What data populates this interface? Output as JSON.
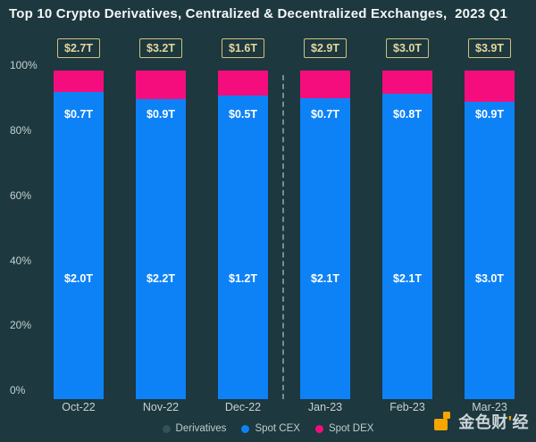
{
  "title": "Top 10 Crypto Derivatives, Centralized & Decentralized Exchanges,  2023 Q1",
  "colors": {
    "background": "#1d383e",
    "bar_blue": "#0d82f7",
    "bar_pink": "#f50d7d",
    "total_box_khaki": "#cfc182",
    "axis_text": "#c5d1d3",
    "title_text": "#f4f7f7",
    "watermark_orange": "#f7a600"
  },
  "watermark": {
    "text_left": "金色财",
    "accent": "'",
    "text_right": "经"
  },
  "chart_data": {
    "type": "bar",
    "stacked": true,
    "percentage_axis": true,
    "title": "Top 10 Crypto Derivatives, Centralized & Decentralized Exchanges,  2023 Q1",
    "categories": [
      "Oct-22",
      "Nov-22",
      "Dec-22",
      "Jan-23",
      "Feb-23",
      "Mar-23"
    ],
    "totals_labels": [
      "$2.7T",
      "$3.2T",
      "$1.6T",
      "$2.9T",
      "$3.0T",
      "$3.9T"
    ],
    "totals_values_trillions": [
      2.7,
      3.2,
      1.6,
      2.9,
      3.0,
      3.9
    ],
    "series": [
      {
        "name": "Derivatives",
        "color": "#0d82f7",
        "legend_swatch": "#31525a",
        "values_trillions": [
          2.0,
          2.2,
          1.2,
          2.1,
          2.1,
          3.0
        ],
        "labels": [
          "$2.0T",
          "$2.2T",
          "$1.2T",
          "$2.1T",
          "$2.1T",
          "$3.0T"
        ]
      },
      {
        "name": "Spot CEX",
        "color": "#0d82f7",
        "legend_swatch": "#0d82f7",
        "values_trillions": [
          0.7,
          0.9,
          0.5,
          0.7,
          0.8,
          0.9
        ],
        "labels": [
          "$0.7T",
          "$0.9T",
          "$0.5T",
          "$0.7T",
          "$0.8T",
          "$0.9T"
        ]
      },
      {
        "name": "Spot DEX",
        "color": "#f50d7d",
        "legend_swatch": "#f50d7d",
        "values_labeled_on_chart": false,
        "approx_percent_of_bar": [
          6.5,
          8.7,
          7.6,
          8.4,
          7.1,
          9.5
        ]
      }
    ],
    "y_ticks": [
      "100%",
      "80%",
      "60%",
      "40%",
      "20%",
      "0%"
    ],
    "ylim": [
      0,
      100
    ],
    "grid": false,
    "legend_position": "bottom",
    "divider_between": [
      "Dec-22",
      "Jan-23"
    ]
  }
}
